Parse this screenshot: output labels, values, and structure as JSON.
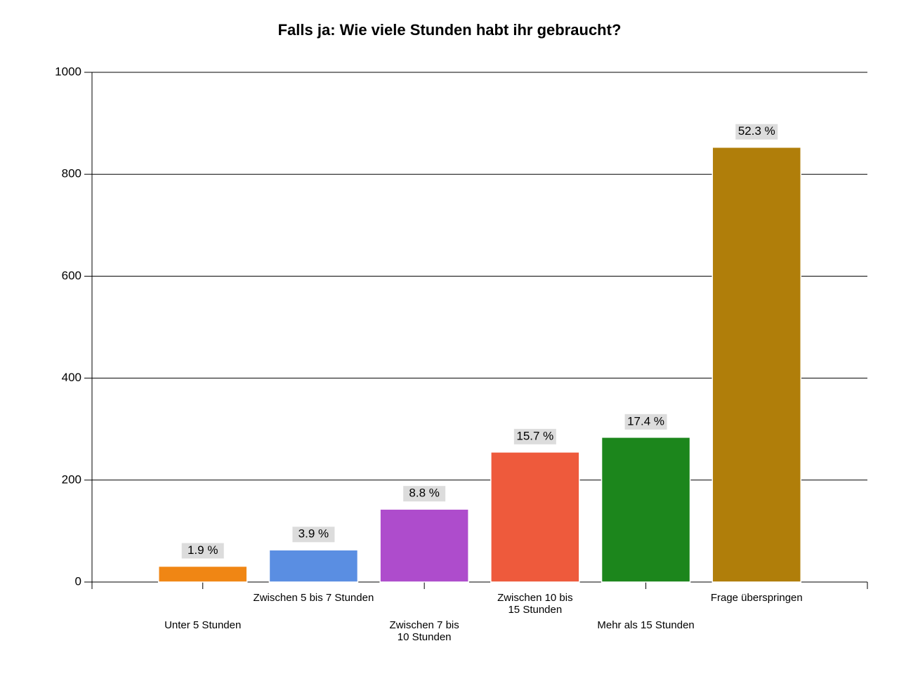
{
  "chart_data": {
    "type": "bar",
    "title": "Falls ja: Wie viele Stunden habt ihr gebraucht?",
    "categories": [
      "Unter 5 Stunden",
      "Zwischen 5 bis 7 Stunden",
      "Zwischen 7 bis\n10 Stunden",
      "Zwischen 10 bis\n15 Stunden",
      "Mehr als 15 Stunden",
      "Frage überspringen"
    ],
    "values": [
      31,
      63,
      143,
      255,
      284,
      853
    ],
    "percent_labels": [
      "1.9 %",
      "3.9 %",
      "8.8 %",
      "15.7 %",
      "17.4 %",
      "52.3 %"
    ],
    "colors": [
      "#f08614",
      "#5a8ee2",
      "#ae4ccc",
      "#ee5a3c",
      "#1c861c",
      "#b07e0a"
    ],
    "ylim": [
      0,
      1000
    ],
    "yticks": [
      0,
      200,
      400,
      600,
      800,
      1000
    ],
    "grid": true
  }
}
